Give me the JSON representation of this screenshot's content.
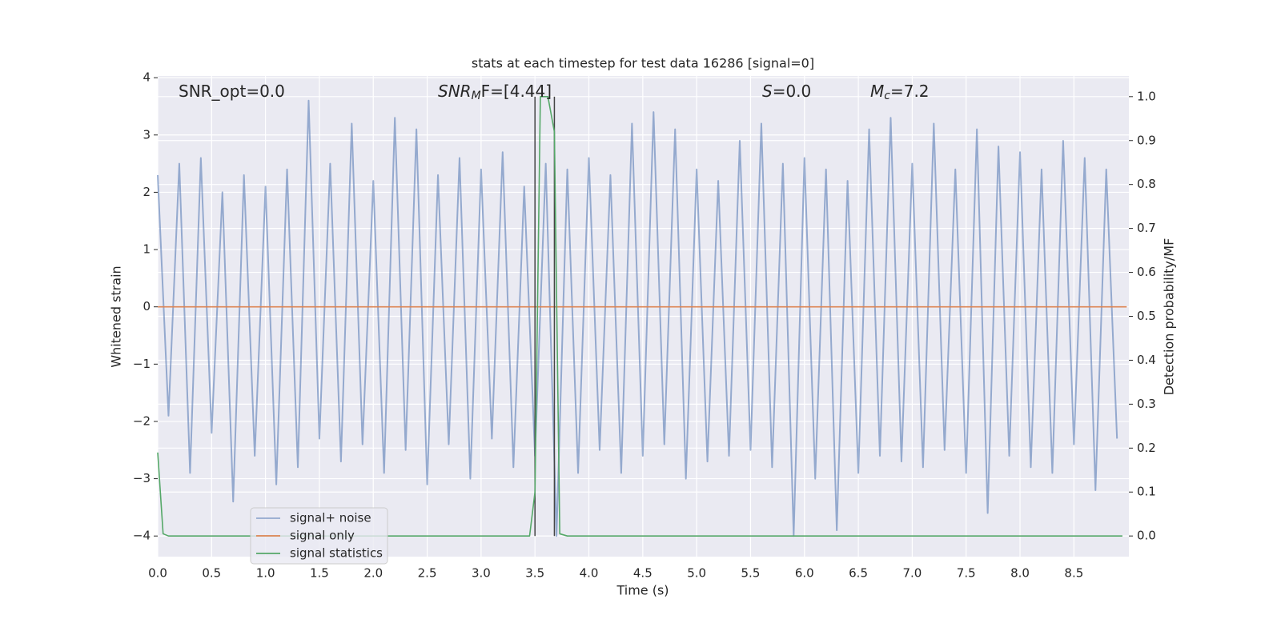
{
  "chart_data": {
    "type": "line",
    "title": "stats at each timestep for test data 16286 [signal=0]",
    "xlabel": "Time (s)",
    "ylabel": "Whitened strain",
    "y2label": "Detection probability/MF",
    "xlim": [
      0,
      9.01
    ],
    "ylim": [
      -4.36,
      4.03
    ],
    "y2lim": [
      -0.047,
      1.047
    ],
    "xticks": [
      {
        "value": 0,
        "label": "0.0"
      },
      0.5,
      {
        "value": 1,
        "label": "1.0"
      },
      1.5,
      {
        "value": 2,
        "label": "2.0"
      },
      2.5,
      {
        "value": 3,
        "label": "3.0"
      },
      3.5,
      {
        "value": 4,
        "label": "4.0"
      },
      4.5,
      {
        "value": 5,
        "label": "5.0"
      },
      5.5,
      {
        "value": 6,
        "label": "6.0"
      },
      6.5,
      {
        "value": 7,
        "label": "7.0"
      },
      7.5,
      {
        "value": 8,
        "label": "8.0"
      },
      8.5
    ],
    "yticks": [
      {
        "value": -4,
        "label": "−4"
      },
      {
        "value": -3,
        "label": "−3"
      },
      {
        "value": -2,
        "label": "−2"
      },
      {
        "value": -1,
        "label": "−1"
      },
      0,
      1,
      2,
      3,
      4
    ],
    "y2ticks": [
      {
        "value": 0,
        "label": "0.0"
      },
      0.1,
      0.2,
      0.3,
      0.4,
      0.5,
      0.6,
      0.7,
      0.8,
      0.9,
      {
        "value": 1,
        "label": "1.0"
      }
    ],
    "grid": true,
    "legend": "lower left",
    "vlines": [
      3.5,
      3.68
    ],
    "vline_color": "#444444",
    "annotations": [
      {
        "base": "SNR_opt=0.0"
      },
      {
        "base": "SNR",
        "sub": "M",
        "rest": "F=[4.44]"
      },
      {
        "base": "S",
        "rest": "=0.0"
      },
      {
        "base": "M",
        "sub": "c",
        "rest": "=7.2"
      }
    ],
    "series": [
      {
        "name": "signal+ noise",
        "color": "#4c72b0",
        "x": [
          0.0,
          0.1,
          0.2,
          0.3,
          0.4,
          0.5,
          0.6,
          0.7,
          0.8,
          0.9,
          1.0,
          1.1,
          1.2,
          1.3,
          1.4,
          1.5,
          1.6,
          1.7,
          1.8,
          1.9,
          2.0,
          2.1,
          2.2,
          2.3,
          2.4,
          2.5,
          2.6,
          2.7,
          2.8,
          2.9,
          3.0,
          3.1,
          3.2,
          3.3,
          3.4,
          3.5,
          3.6,
          3.7,
          3.8,
          3.9,
          4.0,
          4.1,
          4.2,
          4.3,
          4.4,
          4.5,
          4.6,
          4.7,
          4.8,
          4.9,
          5.0,
          5.1,
          5.2,
          5.3,
          5.4,
          5.5,
          5.6,
          5.7,
          5.8,
          5.9,
          6.0,
          6.1,
          6.2,
          6.3,
          6.4,
          6.5,
          6.6,
          6.7,
          6.8,
          6.9,
          7.0,
          7.1,
          7.2,
          7.3,
          7.4,
          7.5,
          7.6,
          7.7,
          7.8,
          7.9,
          8.0,
          8.1,
          8.2,
          8.3,
          8.4,
          8.5,
          8.6,
          8.7,
          8.8,
          8.9
        ],
        "values": [
          2.3,
          -1.9,
          2.5,
          -2.9,
          2.6,
          -2.2,
          2.0,
          -3.4,
          2.3,
          -2.6,
          2.1,
          -3.1,
          2.4,
          -2.8,
          3.6,
          -2.3,
          2.5,
          -2.7,
          3.2,
          -2.4,
          2.2,
          -2.9,
          3.3,
          -2.5,
          3.1,
          -3.1,
          2.3,
          -2.4,
          2.6,
          -3.0,
          2.4,
          -2.3,
          2.7,
          -2.8,
          2.1,
          -2.6,
          2.5,
          -4.0,
          2.4,
          -2.9,
          2.6,
          -2.5,
          2.3,
          -2.9,
          3.2,
          -2.6,
          3.4,
          -2.4,
          3.1,
          -3.0,
          2.4,
          -2.7,
          2.2,
          -2.6,
          2.9,
          -2.5,
          3.2,
          -2.8,
          2.5,
          -4.0,
          2.6,
          -3.0,
          2.4,
          -3.9,
          2.2,
          -2.9,
          3.1,
          -2.6,
          3.3,
          -2.7,
          2.5,
          -2.8,
          3.2,
          -2.5,
          2.4,
          -2.9,
          3.1,
          -3.6,
          2.8,
          -2.6,
          2.7,
          -2.8,
          2.4,
          -2.9,
          2.9,
          -2.4,
          2.6,
          -3.2,
          2.4,
          -2.3
        ]
      },
      {
        "name": "signal only",
        "color": "#dd8452",
        "x": [
          0,
          8.99
        ],
        "values": [
          0,
          0
        ]
      },
      {
        "name": "signal statistics",
        "color": "#55a868",
        "axis": "y2",
        "x": [
          0,
          0.05,
          0.1,
          3.45,
          3.5,
          3.55,
          3.62,
          3.68,
          3.73,
          3.8,
          8.95
        ],
        "values": [
          0.19,
          0.005,
          0,
          0,
          0.1,
          1.0,
          1.0,
          0.92,
          0.005,
          0,
          0
        ]
      }
    ]
  }
}
